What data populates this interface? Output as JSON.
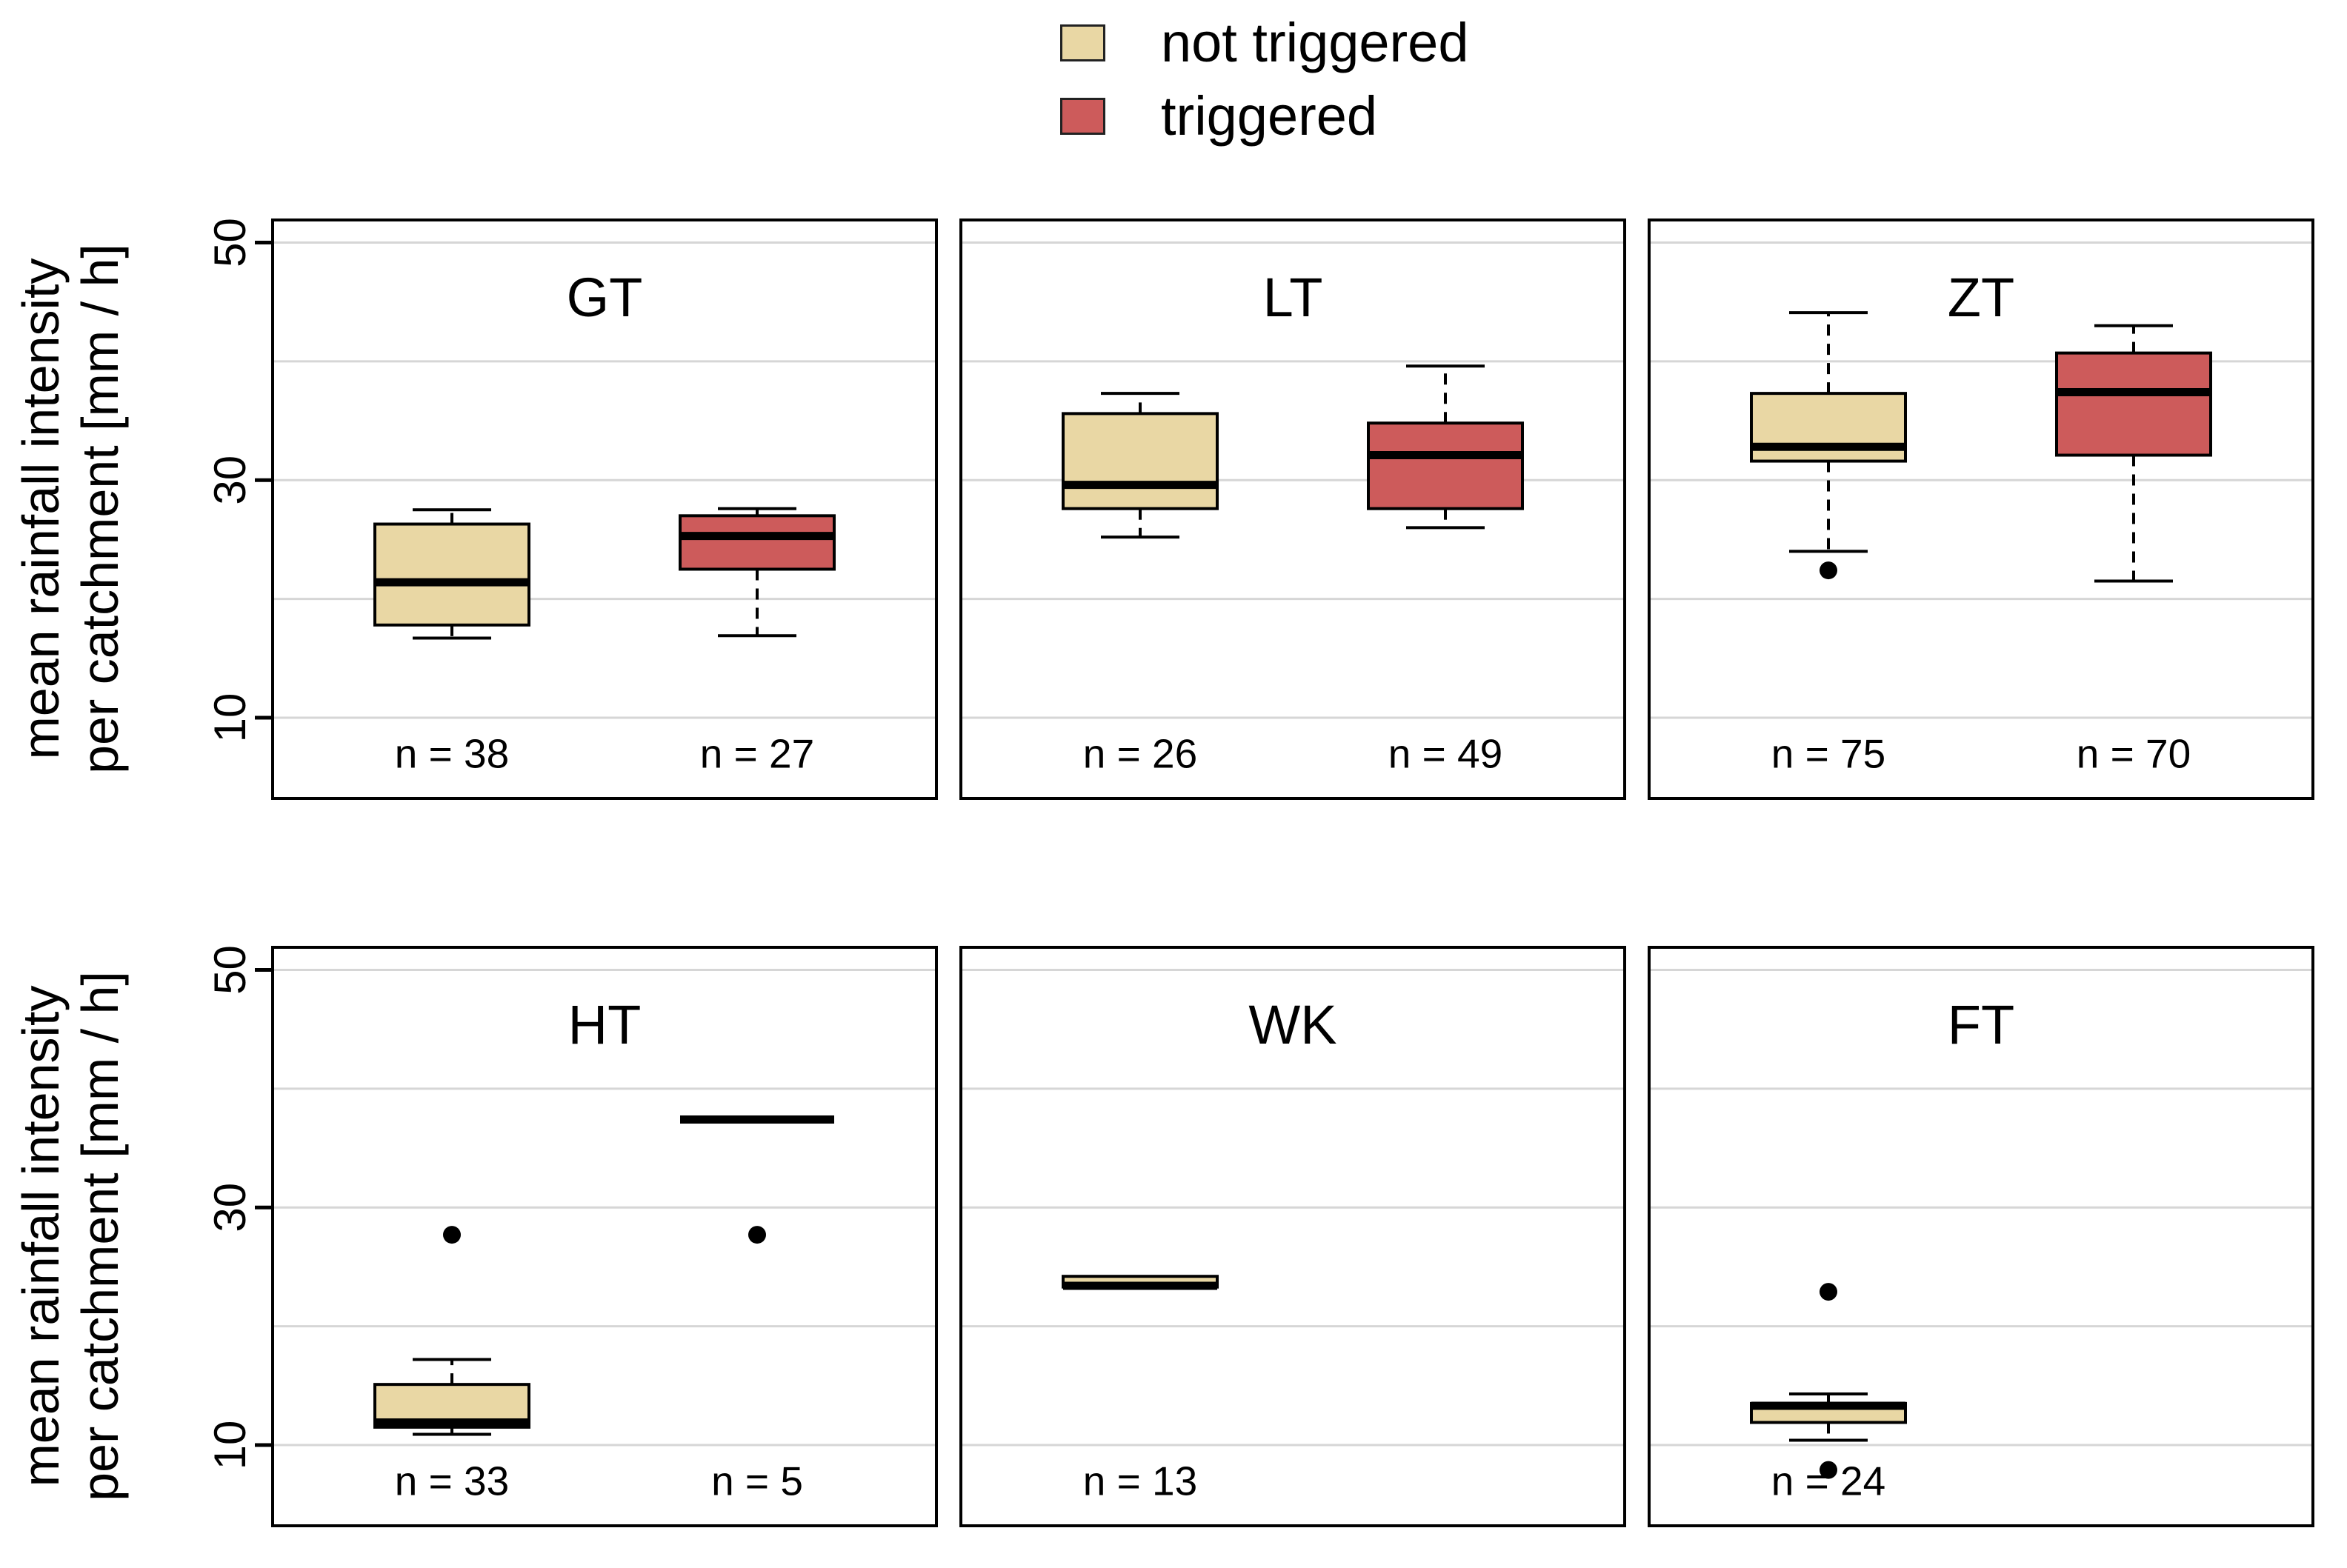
{
  "legend": {
    "items": [
      {
        "label": "not triggered",
        "color": "#e9d7a4"
      },
      {
        "label": "triggered",
        "color": "#cd5b5b"
      }
    ]
  },
  "y_axis": {
    "label_line1": "mean rainfall intensity",
    "label_line2": "per catchment [mm / h]",
    "tick_labels": [
      "10",
      "30",
      "50"
    ]
  },
  "chart_data": {
    "type": "boxplot-grid",
    "ylabel": "mean rainfall intensity per catchment [mm / h]",
    "ylim": [
      3.2,
      51.9
    ],
    "yticks": [
      10,
      30,
      50
    ],
    "gridlines": [
      10,
      20,
      30,
      40,
      50
    ],
    "grid_on": true,
    "legend_position": "top-center",
    "groups": [
      {
        "name": "not triggered",
        "color": "#e9d7a4"
      },
      {
        "name": "triggered",
        "color": "#cd5b5b"
      }
    ],
    "panels": [
      {
        "title": "GT",
        "row": 0,
        "col": 0,
        "boxes": [
          {
            "group": "not triggered",
            "n": 38,
            "n_label": "n = 38",
            "whisker_low": 16.7,
            "q1": 17.8,
            "median": 21.4,
            "q3": 26.3,
            "whisker_high": 27.5,
            "outliers": []
          },
          {
            "group": "triggered",
            "n": 27,
            "n_label": "n = 27",
            "whisker_low": 16.9,
            "q1": 22.5,
            "median": 25.3,
            "q3": 27.0,
            "whisker_high": 27.6,
            "outliers": []
          }
        ]
      },
      {
        "title": "LT",
        "row": 0,
        "col": 1,
        "boxes": [
          {
            "group": "not triggered",
            "n": 26,
            "n_label": "n = 26",
            "whisker_low": 25.2,
            "q1": 27.6,
            "median": 29.6,
            "q3": 35.6,
            "whisker_high": 37.3,
            "outliers": []
          },
          {
            "group": "triggered",
            "n": 49,
            "n_label": "n = 49",
            "whisker_low": 26.0,
            "q1": 27.6,
            "median": 32.1,
            "q3": 34.8,
            "whisker_high": 39.6,
            "outliers": []
          }
        ]
      },
      {
        "title": "ZT",
        "row": 0,
        "col": 2,
        "boxes": [
          {
            "group": "not triggered",
            "n": 75,
            "n_label": "n = 75",
            "whisker_low": 24.0,
            "q1": 31.6,
            "median": 32.8,
            "q3": 37.3,
            "whisker_high": 44.1,
            "outliers": [
              22.4
            ]
          },
          {
            "group": "triggered",
            "n": 70,
            "n_label": "n = 70",
            "whisker_low": 21.5,
            "q1": 32.1,
            "median": 37.4,
            "q3": 40.7,
            "whisker_high": 43.0,
            "outliers": []
          }
        ]
      },
      {
        "title": "HT",
        "row": 1,
        "col": 0,
        "boxes": [
          {
            "group": "not triggered",
            "n": 33,
            "n_label": "n = 33",
            "whisker_low": 10.9,
            "q1": 11.5,
            "median": 11.9,
            "q3": 15.1,
            "whisker_high": 17.2,
            "outliers": [
              27.7
            ]
          },
          {
            "group": "triggered",
            "n": 5,
            "n_label": "n = 5",
            "median_only": true,
            "median": 37.4,
            "outliers": [
              27.7
            ]
          }
        ]
      },
      {
        "title": "WK",
        "row": 1,
        "col": 1,
        "boxes": [
          {
            "group": "not triggered",
            "n": 13,
            "n_label": "n = 13",
            "whisker_low": 23.3,
            "q1": 23.3,
            "median": 23.4,
            "q3": 24.2,
            "whisker_high": 24.2,
            "outliers": []
          }
        ]
      },
      {
        "title": "FT",
        "row": 1,
        "col": 2,
        "boxes": [
          {
            "group": "not triggered",
            "n": 24,
            "n_label": "n = 24",
            "whisker_low": 10.4,
            "q1": 11.9,
            "median": 13.3,
            "q3": 13.5,
            "whisker_high": 14.3,
            "outliers": [
              22.9,
              7.9
            ]
          }
        ]
      }
    ]
  }
}
